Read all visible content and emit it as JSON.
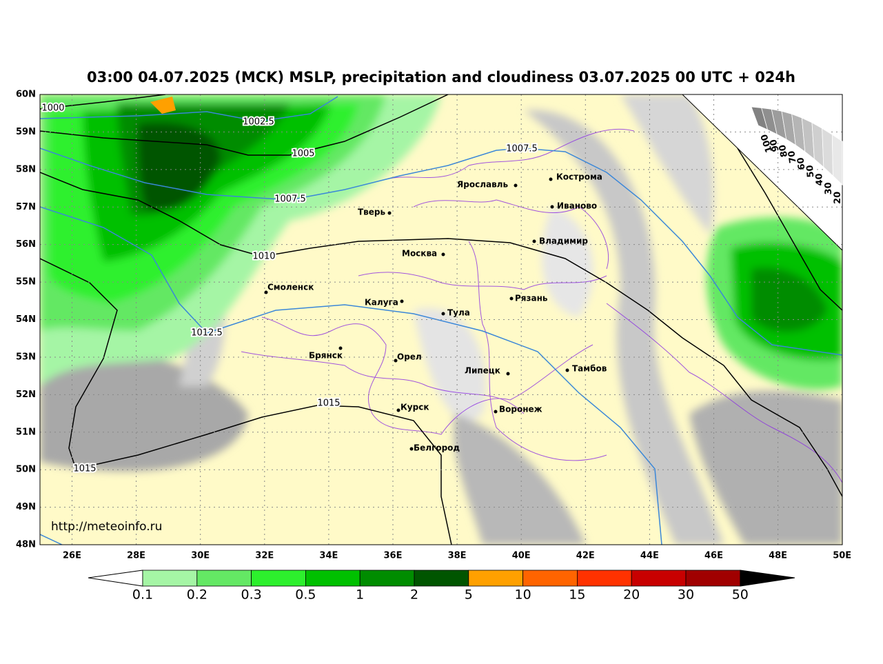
{
  "title": "03:00 04.07.2025 (MCK) MSLP, precipitation and cloudiness 03.07.2025 00 UTC + 024h",
  "lat_labels": [
    "60N",
    "59N",
    "58N",
    "57N",
    "56N",
    "55N",
    "54N",
    "53N",
    "52N",
    "51N",
    "50N",
    "49N",
    "48N"
  ],
  "lon_labels": [
    "26E",
    "28E",
    "30E",
    "32E",
    "34E",
    "36E",
    "38E",
    "40E",
    "42E",
    "44E",
    "46E",
    "48E",
    "50E"
  ],
  "cities": [
    "Ярославль",
    "Кострома",
    "Иваново",
    "Тверь",
    "Владимир",
    "Москва",
    "Смоленск",
    "Калуга",
    "Рязань",
    "Тула",
    "Брянск",
    "Орел",
    "Тамбов",
    "Липецк",
    "Курск",
    "Воронеж",
    "Белгород"
  ],
  "isobar_labels": [
    "1000",
    "1002.5",
    "1005",
    "1007.5",
    "1007.5",
    "1010",
    "1012.5",
    "1015",
    "1015"
  ],
  "colorbar_labels": [
    "0.1",
    "0.2",
    "0.3",
    "0.5",
    "1",
    "2",
    "5",
    "10",
    "15",
    "20",
    "30",
    "50"
  ],
  "colorbar_colors": [
    "#a5f5a5",
    "#64e864",
    "#2df02d",
    "#00c000",
    "#008c00",
    "#005500",
    "#ffa000",
    "#ff6400",
    "#ff3200",
    "#c80000",
    "#a00000"
  ],
  "cloud_scale_labels": [
    "100",
    "90",
    "80",
    "70",
    "60",
    "50",
    "40",
    "30",
    "20"
  ],
  "source": "http://meteoinfo.ru"
}
